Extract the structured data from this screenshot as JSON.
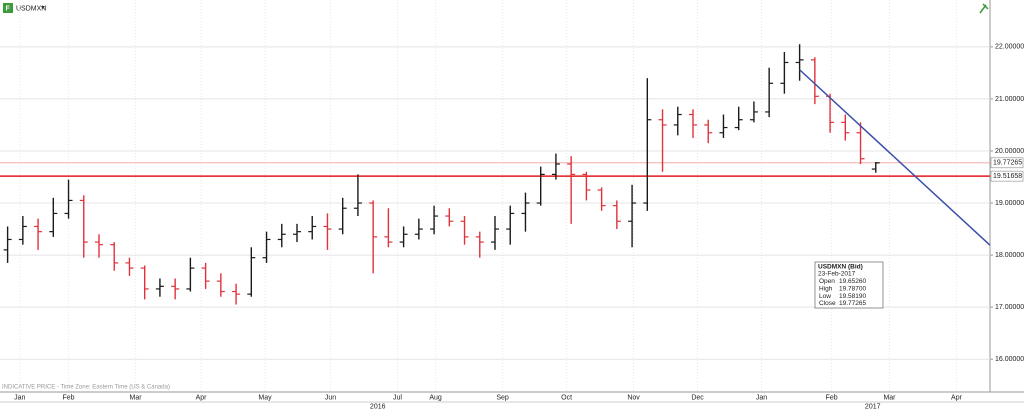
{
  "chart_data": {
    "type": "ohlc",
    "title": "USDMXN",
    "footnote": "INDICATIVE PRICE - Time Zone: Eastern Time (US & Canada)",
    "categories": [
      null,
      null,
      null,
      null,
      null,
      null,
      null,
      null,
      null,
      null,
      null,
      null,
      null,
      null,
      null,
      null,
      null,
      null,
      null,
      null,
      null,
      null,
      null,
      null,
      null,
      null,
      null,
      null,
      null,
      null,
      null,
      null,
      null,
      null,
      null,
      null,
      null,
      null,
      null,
      null,
      null,
      null,
      null,
      null,
      null,
      null,
      null,
      null,
      null,
      null,
      null,
      null,
      null,
      null,
      null,
      null,
      null,
      null
    ],
    "open": [
      18.1,
      18.3,
      18.55,
      18.45,
      18.8,
      19.05,
      18.25,
      18.2,
      17.85,
      17.75,
      17.35,
      17.4,
      17.35,
      17.75,
      17.5,
      17.3,
      17.25,
      17.95,
      18.3,
      18.4,
      18.45,
      18.55,
      18.5,
      18.9,
      19.0,
      18.35,
      18.25,
      18.4,
      18.5,
      18.75,
      18.65,
      18.35,
      18.25,
      18.5,
      18.8,
      19.0,
      19.55,
      19.75,
      19.55,
      19.25,
      18.95,
      18.65,
      19.0,
      20.6,
      20.5,
      20.7,
      20.5,
      20.35,
      20.45,
      20.6,
      20.75,
      21.3,
      21.7,
      21.75,
      21.05,
      20.55,
      20.35,
      19.6526
    ],
    "high": [
      18.55,
      18.75,
      18.7,
      19.1,
      19.45,
      19.15,
      18.4,
      18.25,
      17.95,
      17.8,
      17.55,
      17.55,
      17.95,
      17.85,
      17.65,
      17.45,
      18.15,
      18.45,
      18.6,
      18.6,
      18.75,
      18.8,
      19.1,
      19.55,
      19.05,
      18.9,
      18.55,
      18.7,
      18.95,
      18.9,
      18.75,
      18.45,
      18.75,
      18.95,
      19.2,
      19.7,
      19.95,
      19.9,
      19.6,
      19.3,
      19.05,
      19.35,
      21.4,
      20.8,
      20.85,
      20.8,
      20.6,
      20.7,
      20.85,
      20.95,
      21.6,
      21.9,
      22.05,
      21.8,
      21.1,
      20.7,
      20.55,
      19.787
    ],
    "low": [
      17.85,
      18.2,
      18.1,
      18.35,
      18.7,
      17.95,
      17.95,
      17.7,
      17.6,
      17.15,
      17.2,
      17.15,
      17.3,
      17.35,
      17.2,
      17.05,
      17.2,
      17.85,
      18.15,
      18.25,
      18.3,
      18.1,
      18.4,
      18.75,
      17.65,
      18.15,
      18.15,
      18.3,
      18.4,
      18.55,
      18.2,
      17.95,
      18.1,
      18.2,
      18.45,
      18.95,
      19.45,
      18.6,
      19.05,
      18.85,
      18.5,
      18.15,
      18.85,
      19.6,
      20.3,
      20.25,
      20.15,
      20.25,
      20.4,
      20.55,
      20.65,
      21.1,
      21.35,
      20.9,
      20.35,
      20.2,
      19.75,
      19.5819
    ],
    "close": [
      18.3,
      18.55,
      18.45,
      18.8,
      19.05,
      18.25,
      18.2,
      17.85,
      17.75,
      17.35,
      17.4,
      17.35,
      17.75,
      17.5,
      17.3,
      17.25,
      17.95,
      18.3,
      18.4,
      18.45,
      18.55,
      18.5,
      18.9,
      19.0,
      18.35,
      18.25,
      18.4,
      18.5,
      18.75,
      18.65,
      18.35,
      18.25,
      18.5,
      18.8,
      19.0,
      19.55,
      19.75,
      19.55,
      19.25,
      18.95,
      18.65,
      19.0,
      20.6,
      20.5,
      20.7,
      20.5,
      20.35,
      20.45,
      20.6,
      20.75,
      21.3,
      21.7,
      21.75,
      21.05,
      20.55,
      20.35,
      19.85,
      19.77265
    ],
    "up_color": "#1a1a1a",
    "down_color": "#e0323c",
    "xlim": [
      0,
      65
    ],
    "xticks": [
      {
        "value": 1.3,
        "label": "Jan"
      },
      {
        "value": 4.5,
        "label": "Feb"
      },
      {
        "value": 8.9,
        "label": "Mar"
      },
      {
        "value": 13.2,
        "label": "Apr"
      },
      {
        "value": 17.4,
        "label": "May"
      },
      {
        "value": 21.7,
        "label": "Jun"
      },
      {
        "value": 26.1,
        "label": "Jul"
      },
      {
        "value": 28.6,
        "label": "Aug"
      },
      {
        "value": 33.0,
        "label": "Sep"
      },
      {
        "value": 37.2,
        "label": "Oct"
      },
      {
        "value": 41.6,
        "label": "Nov"
      },
      {
        "value": 45.8,
        "label": "Dec"
      },
      {
        "value": 50.0,
        "label": "Jan"
      },
      {
        "value": 54.6,
        "label": "Feb"
      },
      {
        "value": 58.4,
        "label": "Mar"
      },
      {
        "value": 62.8,
        "label": "Apr"
      }
    ],
    "year_ticks": [
      {
        "value": 24.8,
        "label": "2016"
      },
      {
        "value": 57.3,
        "label": "2017"
      }
    ],
    "ylim": [
      15.37,
      22.9
    ],
    "yticks": [
      {
        "value": 16,
        "label": "16.00000"
      },
      {
        "value": 17,
        "label": "17.00000"
      },
      {
        "value": 18,
        "label": "18.00000"
      },
      {
        "value": 19,
        "label": "19.00000"
      },
      {
        "value": 20,
        "label": "20.00000"
      },
      {
        "value": 21,
        "label": "21.00000"
      },
      {
        "value": 22,
        "label": "22.00000"
      }
    ],
    "grid": true,
    "levels": {
      "values": [
        19.77265,
        19.51658
      ],
      "value_labels": [
        "19.77265",
        "19.51658"
      ],
      "colors": [
        "#f0a0a0",
        "#e31a1c"
      ]
    },
    "trendline": {
      "x": [
        52.5,
        65
      ],
      "y": [
        21.56,
        18.19
      ],
      "color": "#3a4fa8"
    },
    "info_box": {
      "title": "USDMXN (Bid)",
      "date": "23-Feb-2017",
      "rows": [
        [
          "Open",
          "19.65260"
        ],
        [
          "High",
          "19.78700"
        ],
        [
          "Low",
          "19.58190"
        ],
        [
          "Close",
          "19.77265"
        ]
      ]
    }
  }
}
